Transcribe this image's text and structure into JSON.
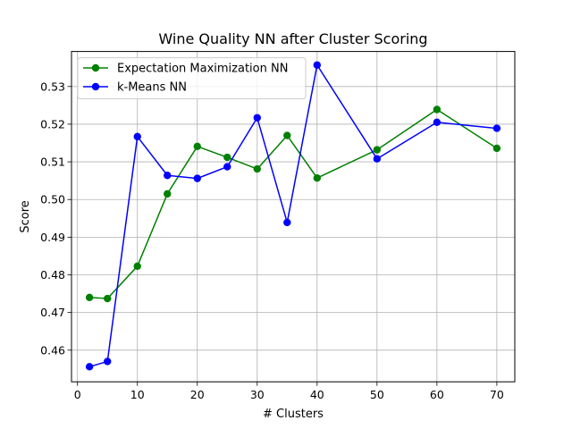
{
  "chart_data": {
    "type": "line",
    "title": "Wine Quality  NN after Cluster Scoring",
    "xlabel": "# Clusters",
    "ylabel": "Score",
    "xlim": [
      -1,
      73
    ],
    "ylim": [
      0.4516,
      0.5393
    ],
    "xticks": [
      0,
      10,
      20,
      30,
      40,
      50,
      60,
      70
    ],
    "yticks": [
      0.46,
      0.47,
      0.48,
      0.49,
      0.5,
      0.51,
      0.52,
      0.53
    ],
    "xtick_labels": [
      "0",
      "10",
      "20",
      "30",
      "40",
      "50",
      "60",
      "70"
    ],
    "ytick_labels": [
      "0.46",
      "0.47",
      "0.48",
      "0.49",
      "0.50",
      "0.51",
      "0.52",
      "0.53"
    ],
    "grid": true,
    "legend_position": "top-left",
    "x": [
      2,
      5,
      10,
      15,
      20,
      25,
      30,
      35,
      40,
      50,
      60,
      70
    ],
    "series": [
      {
        "name": "Expectation Maximization NN",
        "color": "#008000",
        "values": [
          0.474,
          0.4737,
          0.4823,
          0.5015,
          0.5141,
          0.5112,
          0.5081,
          0.517,
          0.5057,
          0.5132,
          0.5239,
          0.5136
        ]
      },
      {
        "name": "k-Means NN",
        "color": "#0000ff",
        "values": [
          0.4556,
          0.457,
          0.5167,
          0.5064,
          0.5056,
          0.5087,
          0.5217,
          0.4939,
          0.5357,
          0.5108,
          0.5205,
          0.5189
        ]
      }
    ]
  }
}
